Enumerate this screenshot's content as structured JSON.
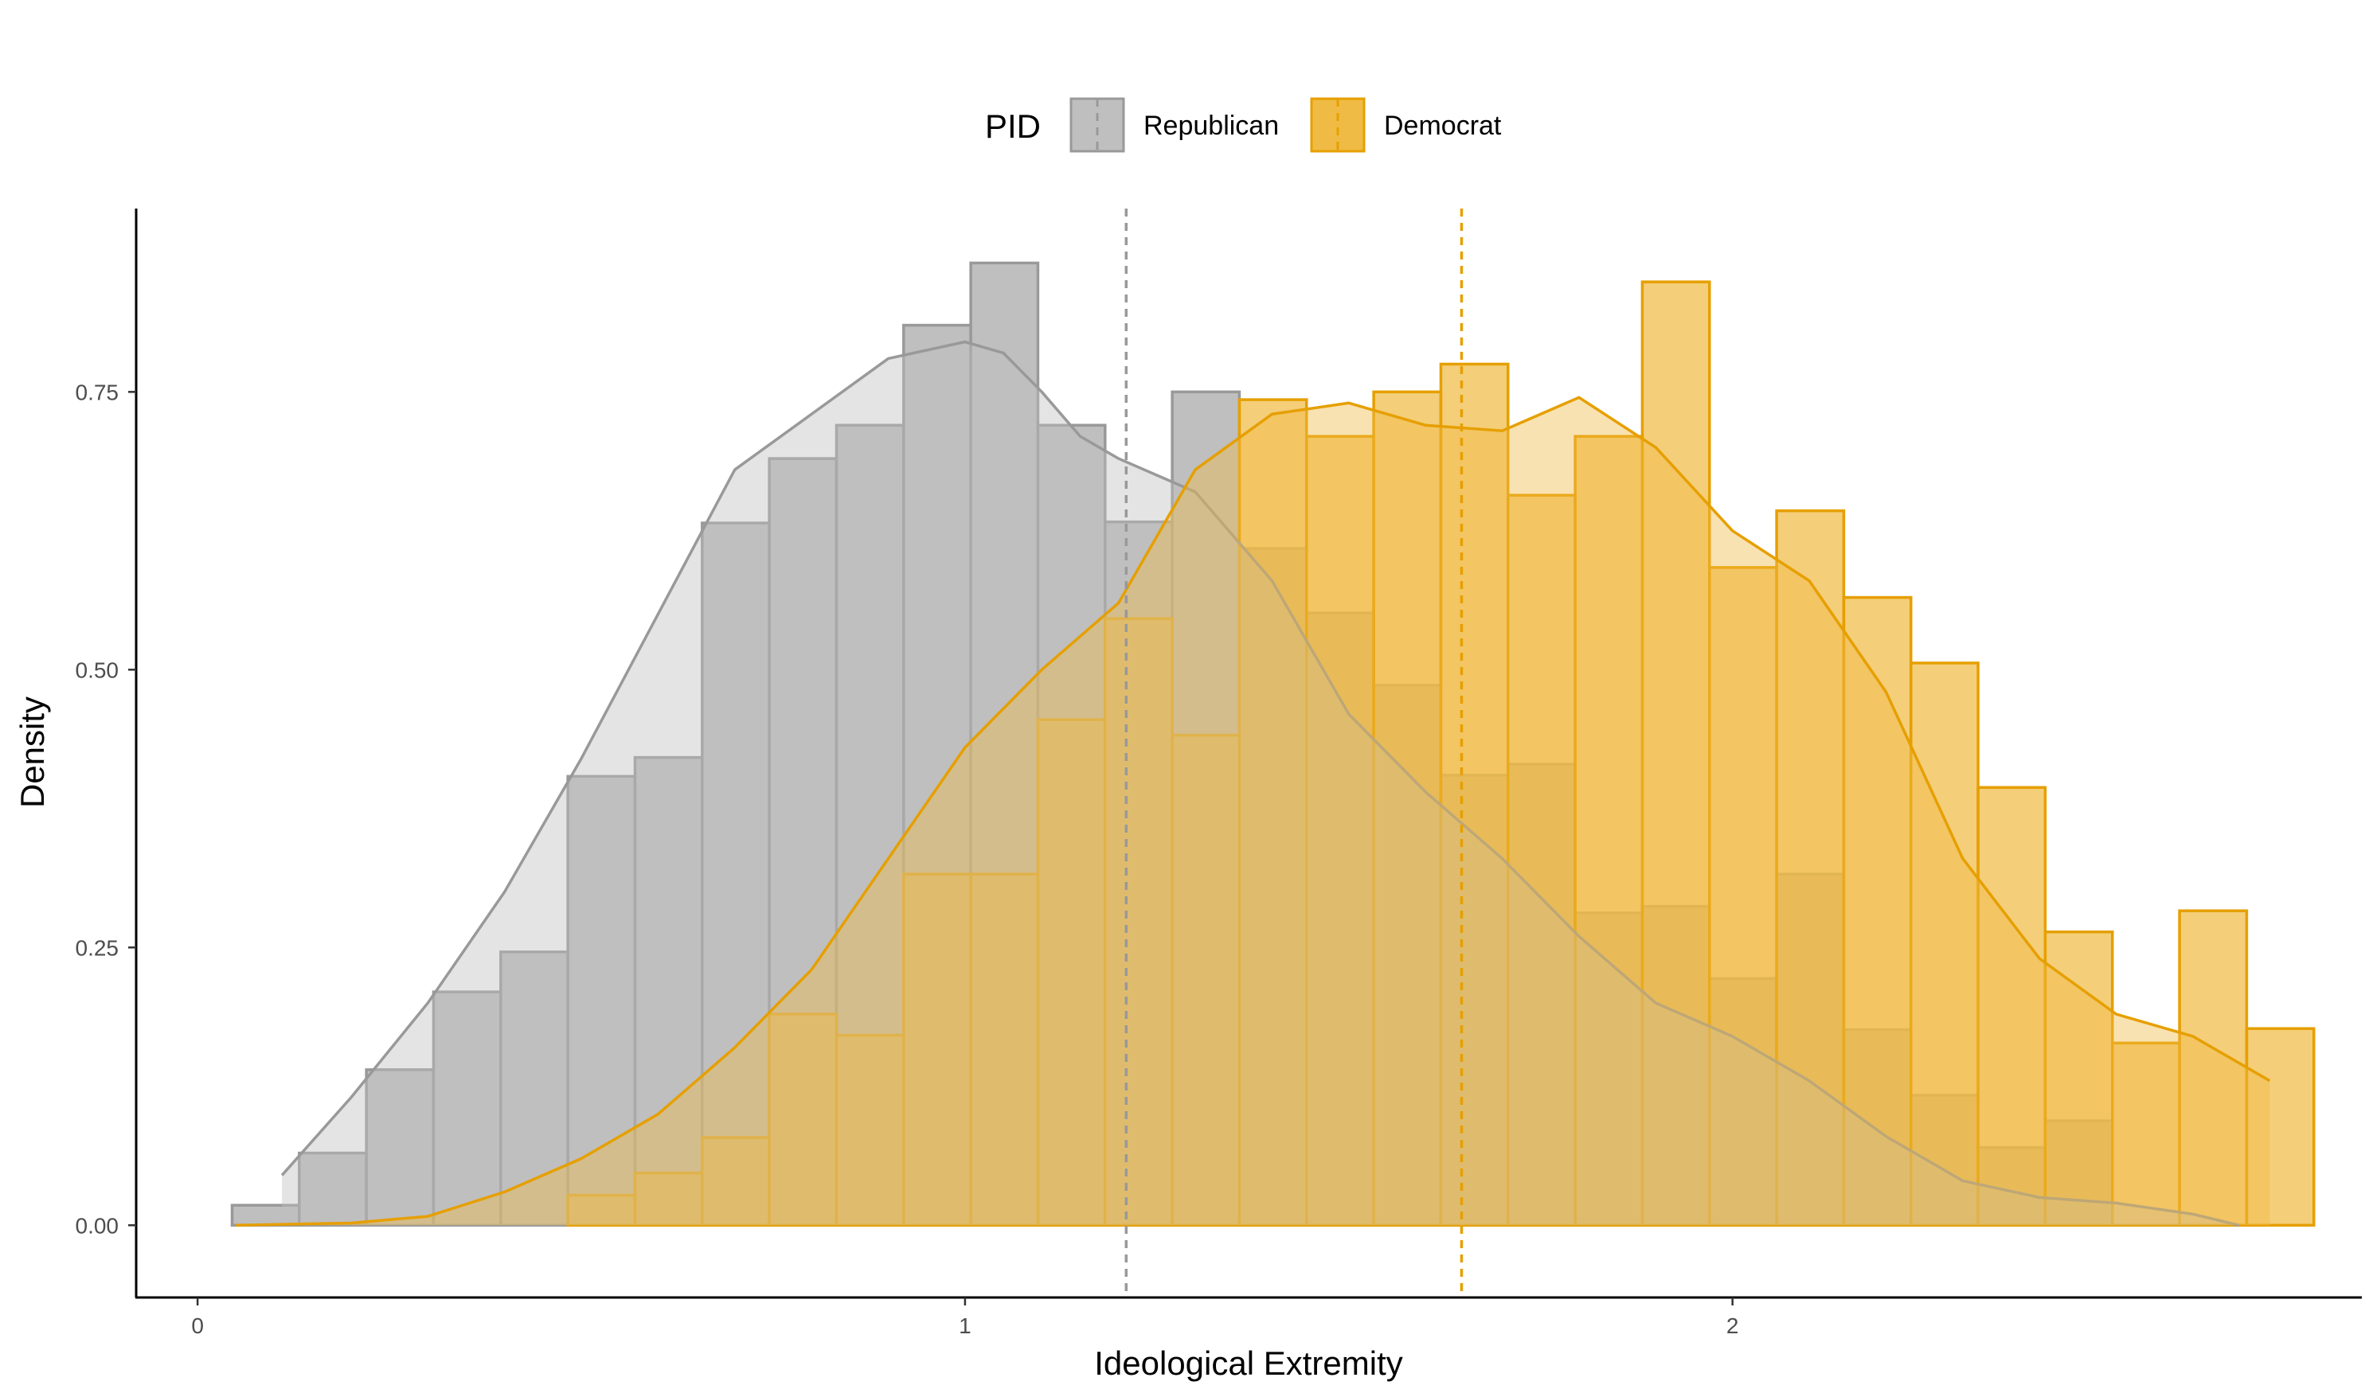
{
  "chart_data": {
    "type": "bar",
    "subtype": "overlaid histogram with density curves and mean lines",
    "xlabel": "Ideological Extremity",
    "ylabel": "Density",
    "xlim": [
      -0.08,
      2.82
    ],
    "ylim": [
      -0.065,
      0.915
    ],
    "x_ticks": [
      0,
      1,
      2
    ],
    "y_ticks": [
      0.0,
      0.25,
      0.5,
      0.75
    ],
    "y_tick_labels": [
      "0.00",
      "0.25",
      "0.50",
      "0.75"
    ],
    "grid": false,
    "bin_width": 0.0875,
    "legend": {
      "title": "PID",
      "position": "top",
      "orientation": "horizontal"
    },
    "series": [
      {
        "name": "Republican",
        "color": "#999999",
        "fill": "#bfbfbf",
        "mean": 1.21,
        "bin_starts": [
          0.045,
          0.1325,
          0.22,
          0.3075,
          0.395,
          0.4825,
          0.57,
          0.6575,
          0.745,
          0.8325,
          0.92,
          1.0075,
          1.095,
          1.1825,
          1.27,
          1.3575,
          1.445,
          1.5325,
          1.62,
          1.7075,
          1.795,
          1.8825,
          1.97,
          2.0575,
          2.145,
          2.2325,
          2.32,
          2.4075,
          2.495
        ],
        "values": [
          0.018,
          0.065,
          0.14,
          0.21,
          0.246,
          0.404,
          0.421,
          0.632,
          0.69,
          0.72,
          0.81,
          0.866,
          0.72,
          0.633,
          0.75,
          0.609,
          0.551,
          0.486,
          0.405,
          0.415,
          0.281,
          0.287,
          0.222,
          0.316,
          0.176,
          0.117,
          0.07,
          0.094,
          0.0
        ],
        "density_x": [
          0.11,
          0.2,
          0.3,
          0.4,
          0.5,
          0.6,
          0.7,
          0.8,
          0.9,
          1.0,
          1.05,
          1.1,
          1.15,
          1.2,
          1.3,
          1.4,
          1.5,
          1.6,
          1.7,
          1.8,
          1.9,
          2.0,
          2.1,
          2.2,
          2.3,
          2.4,
          2.5,
          2.6,
          2.66
        ],
        "density_y": [
          0.045,
          0.115,
          0.2,
          0.3,
          0.42,
          0.55,
          0.68,
          0.73,
          0.78,
          0.795,
          0.785,
          0.75,
          0.71,
          0.69,
          0.66,
          0.58,
          0.46,
          0.39,
          0.33,
          0.26,
          0.2,
          0.17,
          0.13,
          0.08,
          0.04,
          0.025,
          0.02,
          0.01,
          0.0
        ]
      },
      {
        "name": "Democrat",
        "color": "#E69F00",
        "fill": "#f0bb45",
        "mean": 1.647,
        "bin_starts": [
          0.045,
          0.1325,
          0.22,
          0.3075,
          0.395,
          0.4825,
          0.57,
          0.6575,
          0.745,
          0.8325,
          0.92,
          1.0075,
          1.095,
          1.1825,
          1.27,
          1.3575,
          1.445,
          1.5325,
          1.62,
          1.7075,
          1.795,
          1.8825,
          1.97,
          2.0575,
          2.145,
          2.2325,
          2.32,
          2.4075,
          2.495,
          2.5825,
          2.67
        ],
        "values": [
          0.0,
          0.0,
          0.0,
          0.0,
          0.0,
          0.027,
          0.047,
          0.079,
          0.19,
          0.171,
          0.316,
          0.316,
          0.455,
          0.546,
          0.441,
          0.743,
          0.71,
          0.75,
          0.775,
          0.657,
          0.71,
          0.849,
          0.592,
          0.643,
          0.565,
          0.506,
          0.394,
          0.264,
          0.164,
          0.283,
          0.177
        ],
        "density_x": [
          0.05,
          0.2,
          0.3,
          0.4,
          0.5,
          0.6,
          0.7,
          0.8,
          0.9,
          1.0,
          1.1,
          1.2,
          1.3,
          1.4,
          1.5,
          1.6,
          1.7,
          1.8,
          1.9,
          2.0,
          2.1,
          2.2,
          2.3,
          2.4,
          2.5,
          2.6,
          2.7
        ],
        "density_y": [
          0.0,
          0.002,
          0.008,
          0.03,
          0.06,
          0.1,
          0.16,
          0.23,
          0.33,
          0.43,
          0.5,
          0.56,
          0.68,
          0.73,
          0.74,
          0.72,
          0.715,
          0.745,
          0.7,
          0.625,
          0.58,
          0.48,
          0.33,
          0.24,
          0.19,
          0.17,
          0.13
        ]
      }
    ]
  }
}
